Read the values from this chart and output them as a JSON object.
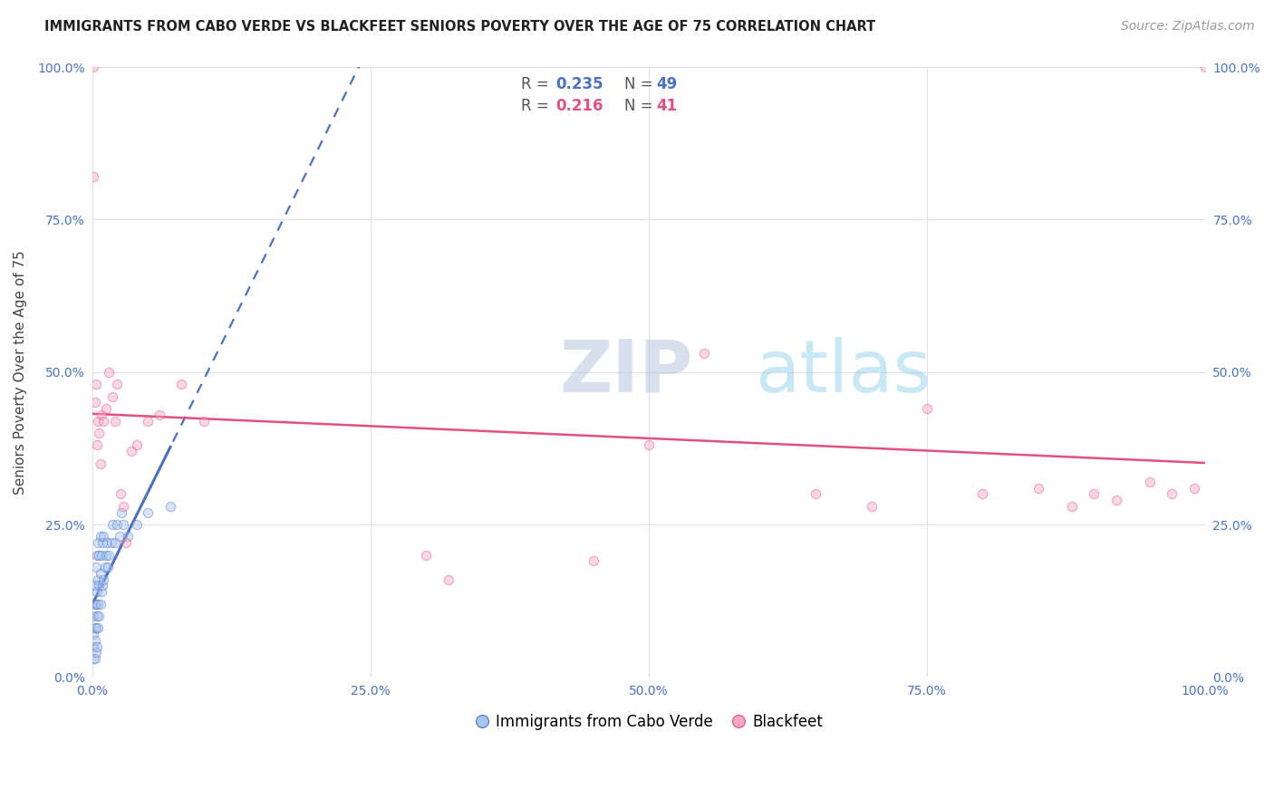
{
  "title": "IMMIGRANTS FROM CABO VERDE VS BLACKFEET SENIORS POVERTY OVER THE AGE OF 75 CORRELATION CHART",
  "source": "Source: ZipAtlas.com",
  "ylabel": "Seniors Poverty Over the Age of 75",
  "xlim": [
    0,
    1.0
  ],
  "ylim": [
    0,
    1.0
  ],
  "xticks": [
    0.0,
    0.25,
    0.5,
    0.75,
    1.0
  ],
  "xticklabels": [
    "0.0%",
    "25.0%",
    "50.0%",
    "75.0%",
    "100.0%"
  ],
  "yticks": [
    0.0,
    0.25,
    0.5,
    0.75,
    1.0
  ],
  "yticklabels": [
    "0.0%",
    "25.0%",
    "50.0%",
    "75.0%",
    "100.0%"
  ],
  "legend_R1": "0.235",
  "legend_N1": "49",
  "legend_R2": "0.216",
  "legend_N2": "41",
  "series1_color": "#a8c4f0",
  "series2_color": "#f5a8c0",
  "trend1_color": "#4a72c4",
  "trend2_color": "#e05080",
  "watermark_zip": "ZIP",
  "watermark_atlas": "atlas",
  "cabo_verde_x": [
    0.001,
    0.001,
    0.001,
    0.001,
    0.002,
    0.002,
    0.002,
    0.002,
    0.002,
    0.003,
    0.003,
    0.003,
    0.003,
    0.004,
    0.004,
    0.004,
    0.004,
    0.005,
    0.005,
    0.005,
    0.005,
    0.006,
    0.006,
    0.006,
    0.007,
    0.007,
    0.007,
    0.008,
    0.008,
    0.009,
    0.009,
    0.01,
    0.01,
    0.011,
    0.012,
    0.013,
    0.014,
    0.015,
    0.017,
    0.018,
    0.02,
    0.022,
    0.024,
    0.026,
    0.028,
    0.032,
    0.04,
    0.05,
    0.07
  ],
  "cabo_verde_y": [
    0.03,
    0.05,
    0.07,
    0.1,
    0.03,
    0.06,
    0.08,
    0.12,
    0.15,
    0.04,
    0.08,
    0.12,
    0.18,
    0.05,
    0.1,
    0.14,
    0.2,
    0.08,
    0.12,
    0.16,
    0.22,
    0.1,
    0.15,
    0.2,
    0.12,
    0.17,
    0.23,
    0.14,
    0.2,
    0.15,
    0.22,
    0.16,
    0.23,
    0.18,
    0.2,
    0.22,
    0.18,
    0.2,
    0.22,
    0.25,
    0.22,
    0.25,
    0.23,
    0.27,
    0.25,
    0.23,
    0.25,
    0.27,
    0.28
  ],
  "blackfeet_x": [
    0.001,
    0.001,
    0.002,
    0.003,
    0.004,
    0.005,
    0.006,
    0.007,
    0.008,
    0.01,
    0.012,
    0.015,
    0.018,
    0.02,
    0.022,
    0.025,
    0.028,
    0.03,
    0.035,
    0.04,
    0.05,
    0.06,
    0.08,
    0.1,
    0.3,
    0.32,
    0.45,
    0.5,
    0.55,
    0.65,
    0.7,
    0.75,
    0.8,
    0.85,
    0.88,
    0.9,
    0.92,
    0.95,
    0.97,
    0.99,
    1.0
  ],
  "blackfeet_y": [
    0.82,
    1.0,
    0.45,
    0.48,
    0.38,
    0.42,
    0.4,
    0.35,
    0.43,
    0.42,
    0.44,
    0.5,
    0.46,
    0.42,
    0.48,
    0.3,
    0.28,
    0.22,
    0.37,
    0.38,
    0.42,
    0.43,
    0.48,
    0.42,
    0.2,
    0.16,
    0.19,
    0.38,
    0.53,
    0.3,
    0.28,
    0.44,
    0.3,
    0.31,
    0.28,
    0.3,
    0.29,
    0.32,
    0.3,
    0.31,
    1.0
  ],
  "title_fontsize": 10.5,
  "axis_label_fontsize": 11,
  "tick_fontsize": 10,
  "legend_fontsize": 12,
  "source_fontsize": 10,
  "marker_size": 55,
  "marker_alpha": 0.45,
  "background_color": "#ffffff",
  "grid_color": "#e0e0ec"
}
